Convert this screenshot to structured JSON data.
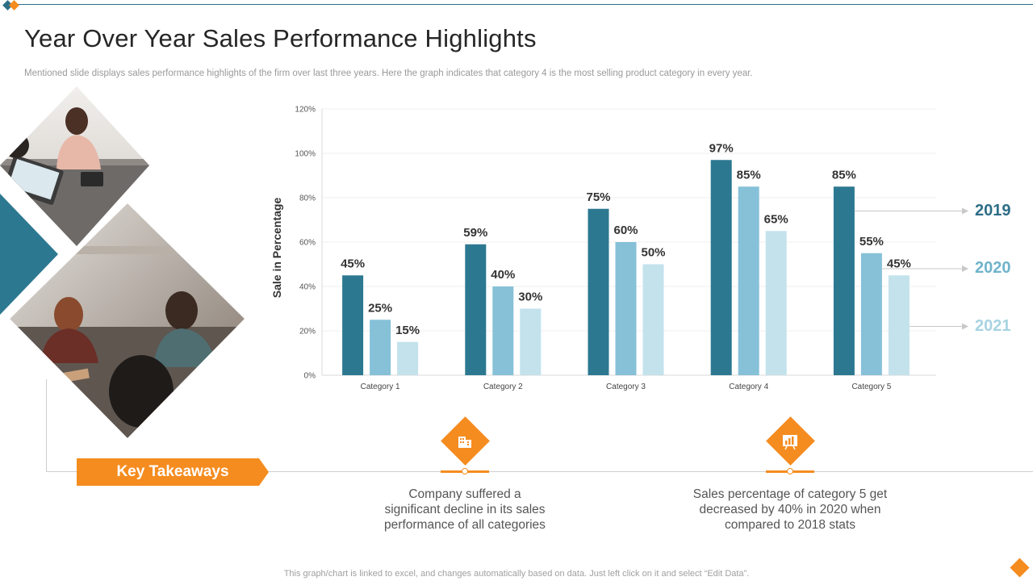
{
  "slide": {
    "title": "Year Over Year Sales Performance Highlights",
    "subtitle": "Mentioned slide displays sales performance highlights of the firm over last three years. Here the graph indicates that category 4 is the most selling product category in every year.",
    "footer": "This graph/chart is linked to excel, and changes automatically based on data. Just left click on it and select “Edit Data”."
  },
  "colors": {
    "series_2019": "#2d7891",
    "series_2020": "#86c1d8",
    "series_2021": "#c3e2ec",
    "accent_orange": "#f58c1f",
    "title_dark_teal": "#2d6e87"
  },
  "chart_data": {
    "type": "bar",
    "title": "",
    "xlabel": "",
    "ylabel": "Sale in Percentage",
    "ylim": [
      0,
      120
    ],
    "yticks": [
      0,
      20,
      40,
      60,
      80,
      100,
      120
    ],
    "ytick_labels": [
      "0%",
      "20%",
      "40%",
      "60%",
      "80%",
      "100%",
      "120%"
    ],
    "categories": [
      "Category 1",
      "Category 2",
      "Category 3",
      "Category 4",
      "Category 5"
    ],
    "series": [
      {
        "name": "2019",
        "values": [
          45,
          59,
          75,
          97,
          85
        ],
        "labels": [
          "45%",
          "59%",
          "75%",
          "97%",
          "85%"
        ]
      },
      {
        "name": "2020",
        "values": [
          25,
          40,
          60,
          85,
          55
        ],
        "labels": [
          "25%",
          "40%",
          "60%",
          "85%",
          "55%"
        ]
      },
      {
        "name": "2021",
        "values": [
          15,
          30,
          50,
          65,
          45
        ],
        "labels": [
          "15%",
          "30%",
          "50%",
          "65%",
          "45%"
        ]
      }
    ],
    "legend": "right, arrow-labelled beside last category"
  },
  "takeaways": {
    "heading": "Key Takeaways",
    "items": [
      {
        "icon": "building-icon",
        "text_lines": [
          "Company suffered a",
          "significant decline in its sales",
          "performance of all categories"
        ]
      },
      {
        "icon": "chart-board-icon",
        "text_lines": [
          "Sales percentage of category 5 get",
          "decreased by 40% in 2020 when",
          "compared to 2018 stats"
        ]
      }
    ]
  }
}
